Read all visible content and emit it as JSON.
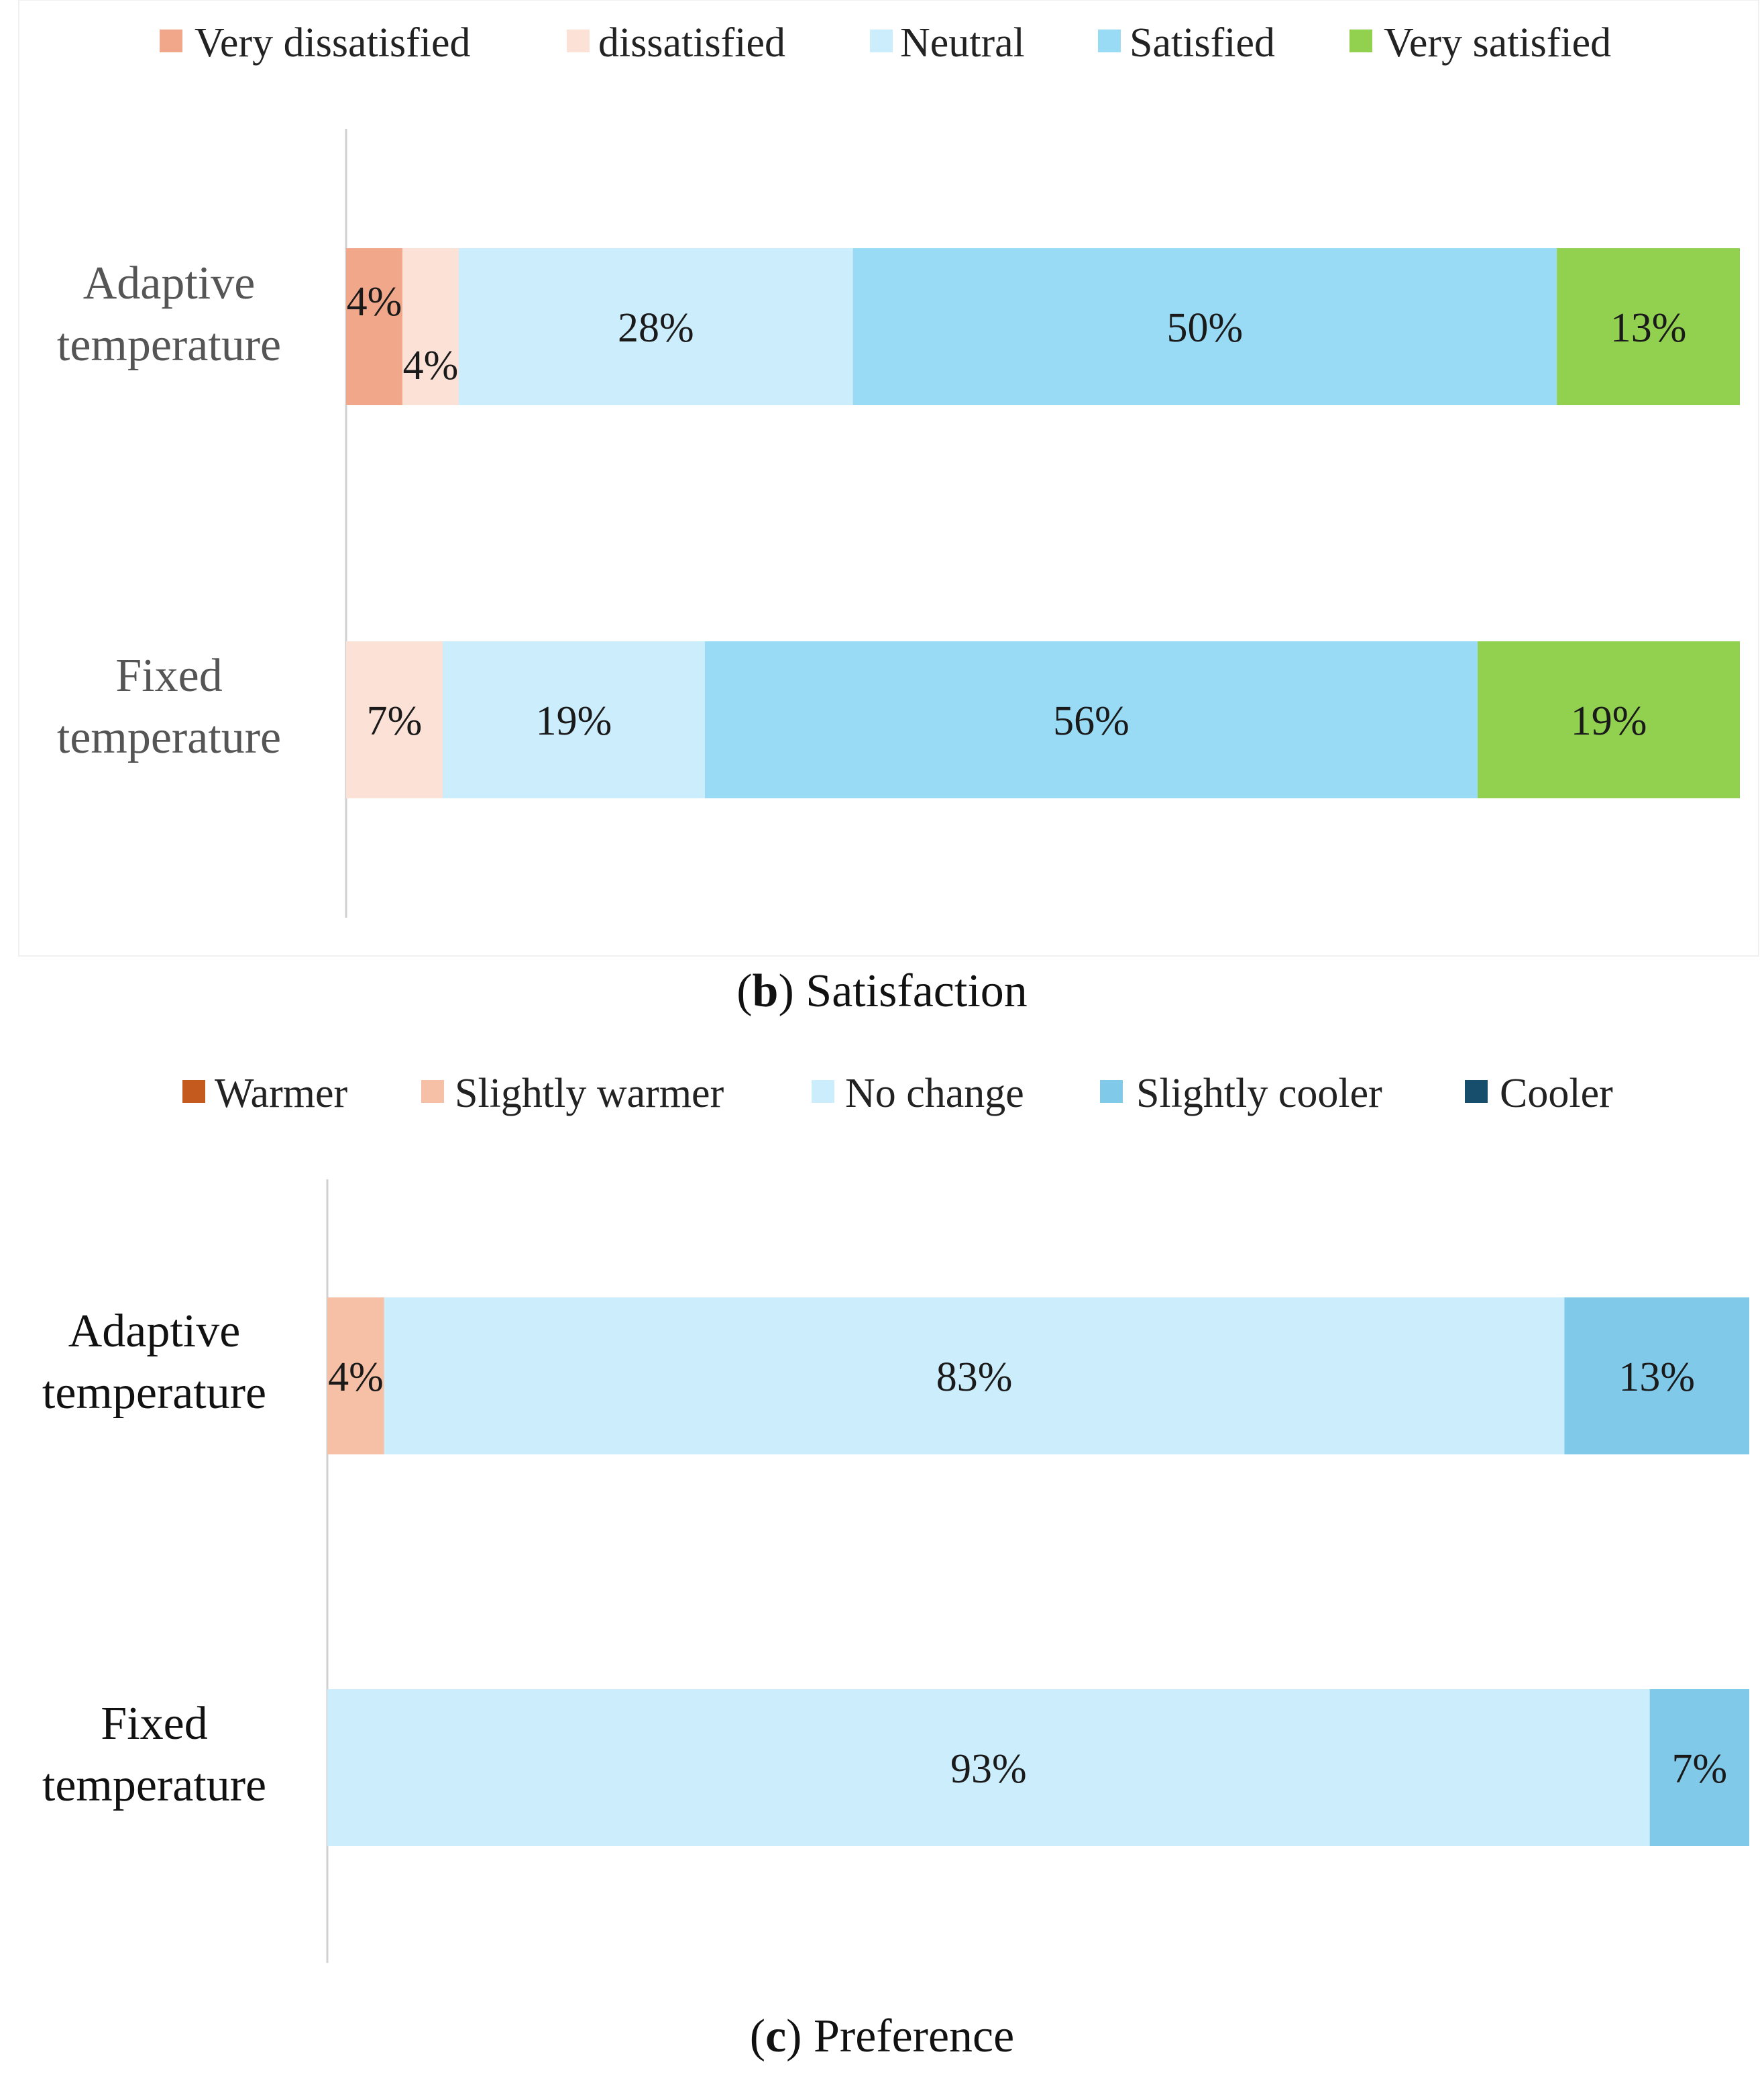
{
  "chart_data": [
    {
      "type": "bar",
      "orientation": "horizontal",
      "stacked": true,
      "caption_letter": "b",
      "caption_text": ") Satisfaction",
      "caption_prefix": "(",
      "categories": [
        "Adaptive temperature",
        "Fixed temperature"
      ],
      "category_lines": [
        [
          "Adaptive",
          "temperature"
        ],
        [
          "Fixed",
          "temperature"
        ]
      ],
      "category_color": "#555555",
      "series": [
        {
          "name": "Very dissatisfied",
          "color": "#F1A78A",
          "values": [
            4,
            0
          ],
          "labels": [
            "4%",
            ""
          ]
        },
        {
          "name": "dissatisfied",
          "color": "#FBE1D6",
          "values": [
            4,
            7
          ],
          "labels": [
            "4%",
            "7%"
          ]
        },
        {
          "name": "Neutral",
          "color": "#CCEDFB",
          "values": [
            28,
            19
          ],
          "labels": [
            "28%",
            "19%"
          ]
        },
        {
          "name": "Satisfied",
          "color": "#99DBF5",
          "values": [
            50,
            56
          ],
          "labels": [
            "50%",
            "56%"
          ]
        },
        {
          "name": "Very satisfied",
          "color": "#92D050",
          "values": [
            13,
            19
          ],
          "labels": [
            "13%",
            "19%"
          ]
        }
      ],
      "xlim": [
        0,
        100
      ],
      "legend_position": "top"
    },
    {
      "type": "bar",
      "orientation": "horizontal",
      "stacked": true,
      "caption_letter": "c",
      "caption_text": ") Preference",
      "caption_prefix": "(",
      "categories": [
        "Adaptive temperature",
        "Fixed temperature"
      ],
      "category_lines": [
        [
          "Adaptive",
          "temperature"
        ],
        [
          "Fixed",
          "temperature"
        ]
      ],
      "category_color": "#111111",
      "series": [
        {
          "name": "Warmer",
          "color": "#C55A1E",
          "values": [
            0,
            0
          ],
          "labels": [
            "",
            ""
          ]
        },
        {
          "name": "Slightly warmer",
          "color": "#F5C0A5",
          "values": [
            4,
            0
          ],
          "labels": [
            "4%",
            ""
          ]
        },
        {
          "name": "No change",
          "color": "#CCEDFB",
          "values": [
            83,
            93
          ],
          "labels": [
            "83%",
            "93%"
          ]
        },
        {
          "name": "Slightly cooler",
          "color": "#80C9E9",
          "values": [
            13,
            7
          ],
          "labels": [
            "13%",
            "7%"
          ]
        },
        {
          "name": "Cooler",
          "color": "#174E6B",
          "values": [
            0,
            0
          ],
          "labels": [
            "",
            ""
          ]
        }
      ],
      "xlim": [
        0,
        100
      ],
      "legend_position": "top"
    }
  ]
}
